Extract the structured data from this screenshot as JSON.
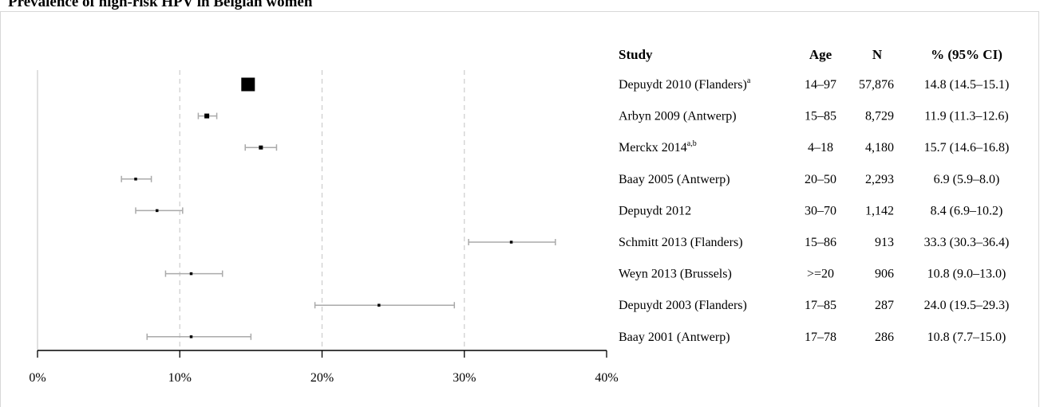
{
  "caption": "Prevalence of high-risk HPV in Belgian women",
  "chart_data": {
    "type": "forest",
    "xlim": [
      0,
      40
    ],
    "x_unit": "%",
    "ticks": [
      0,
      10,
      20,
      30,
      40
    ],
    "tick_labels": [
      "0%",
      "10%",
      "20%",
      "30%",
      "40%"
    ],
    "gridlines": [
      10,
      20,
      30
    ],
    "headers": {
      "study": "Study",
      "age": "Age",
      "n": "N",
      "ci": "% (95% CI)"
    },
    "rows": [
      {
        "study": "Depuydt 2010 (Flanders)",
        "sup": "a",
        "age": "14–97",
        "n": "57,876",
        "ci": "14.8 (14.5–15.1)",
        "est": 14.8,
        "lo": 14.5,
        "hi": 15.1
      },
      {
        "study": "Arbyn 2009 (Antwerp)",
        "sup": "",
        "age": "15–85",
        "n": "8,729",
        "ci": "11.9 (11.3–12.6)",
        "est": 11.9,
        "lo": 11.3,
        "hi": 12.6
      },
      {
        "study": "Merckx 2014",
        "sup": "a,b",
        "age": "4–18",
        "n": "4,180",
        "ci": "15.7 (14.6–16.8)",
        "est": 15.7,
        "lo": 14.6,
        "hi": 16.8
      },
      {
        "study": "Baay 2005 (Antwerp)",
        "sup": "",
        "age": "20–50",
        "n": "2,293",
        "ci": "6.9 (5.9–8.0)",
        "est": 6.9,
        "lo": 5.9,
        "hi": 8.0
      },
      {
        "study": "Depuydt 2012",
        "sup": "",
        "age": "30–70",
        "n": "1,142",
        "ci": "8.4 (6.9–10.2)",
        "est": 8.4,
        "lo": 6.9,
        "hi": 10.2
      },
      {
        "study": "Schmitt 2013 (Flanders)",
        "sup": "",
        "age": "15–86",
        "n": "913",
        "ci": "33.3 (30.3–36.4)",
        "est": 33.3,
        "lo": 30.3,
        "hi": 36.4
      },
      {
        "study": "Weyn 2013 (Brussels)",
        "sup": "",
        "age": ">=20",
        "n": "906",
        "ci": "10.8 (9.0–13.0)",
        "est": 10.8,
        "lo": 9.0,
        "hi": 13.0
      },
      {
        "study": "Depuydt 2003 (Flanders)",
        "sup": "",
        "age": "17–85",
        "n": "287",
        "ci": "24.0 (19.5–29.3)",
        "est": 24.0,
        "lo": 19.5,
        "hi": 29.3
      },
      {
        "study": "Baay 2001 (Antwerp)",
        "sup": "",
        "age": "17–78",
        "n": "286",
        "ci": "10.8 (7.7–15.0)",
        "est": 10.8,
        "lo": 7.7,
        "hi": 15.0
      }
    ],
    "colors": {
      "marker": "#000000",
      "ci_line": "#aaaaaa",
      "grid": "#cccccc",
      "axis": "#000000"
    }
  }
}
